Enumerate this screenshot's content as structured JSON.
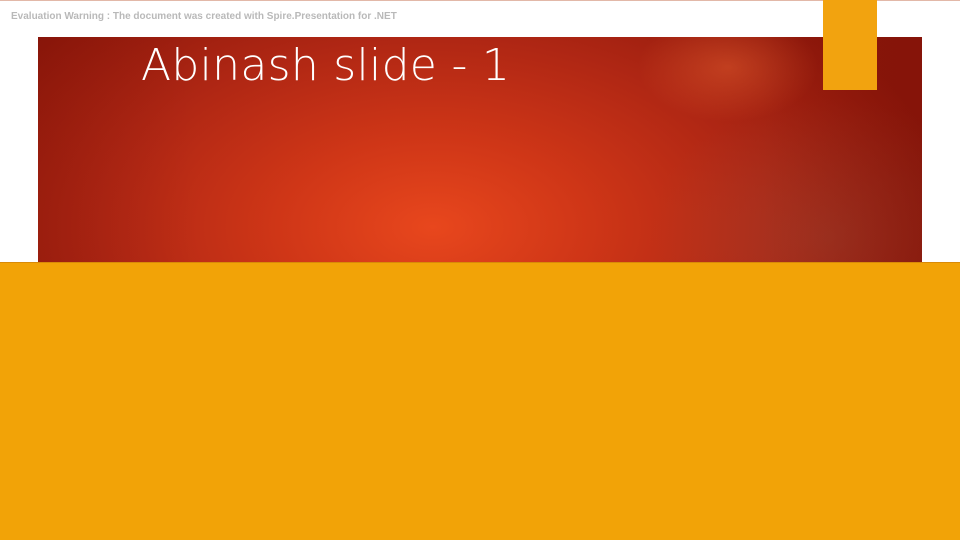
{
  "slide": {
    "evaluation_warning": "Evaluation Warning : The document was created with  Spire.Presentation for .NET",
    "title": "Abinash slide - 1"
  },
  "colors": {
    "title_band_center": "#e8471d",
    "title_band_edge": "#8a160a",
    "accent": "#f2a30f",
    "content_block": "#f2a307",
    "title_text": "#ffffff",
    "warning_text": "#b9b9b9"
  }
}
